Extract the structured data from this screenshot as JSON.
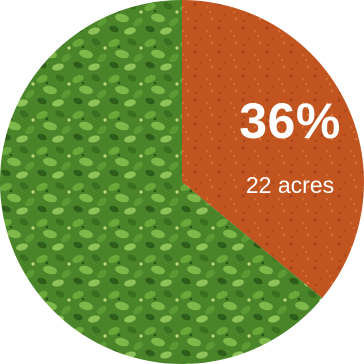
{
  "chart_data": {
    "type": "pie",
    "slices": [
      {
        "percent_label": "36%",
        "detail_label": "22 acres",
        "value": 36,
        "fill": "soil-orange",
        "color": "#c1541f"
      },
      {
        "value": 64,
        "fill": "green-crop",
        "color": "#4e8a2c"
      }
    ],
    "title": "",
    "legend": "none"
  }
}
